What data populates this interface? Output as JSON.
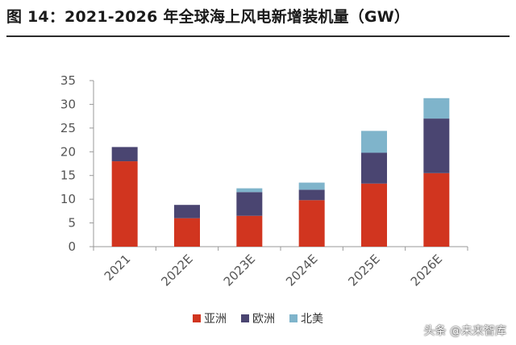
{
  "title": "图 14：2021-2026 年全球海上风电新增装机量（GW）",
  "watermark": "头条 @未来智库",
  "colors": {
    "asia": "#d1351f",
    "europe": "#4a4571",
    "north_america": "#7fb4cb"
  },
  "chart_data": {
    "type": "bar",
    "stacked": true,
    "categories": [
      "2021",
      "2022E",
      "2023E",
      "2024E",
      "2025E",
      "2026E"
    ],
    "series": [
      {
        "name": "亚洲",
        "values": [
          18.0,
          6.0,
          6.5,
          9.8,
          13.3,
          15.5
        ]
      },
      {
        "name": "欧洲",
        "values": [
          3.0,
          2.8,
          5.0,
          2.2,
          6.5,
          11.5
        ]
      },
      {
        "name": "北美",
        "values": [
          0.0,
          0.0,
          0.8,
          1.5,
          4.6,
          4.3
        ]
      }
    ],
    "ylim": [
      0,
      35
    ],
    "yticks": [
      0,
      5,
      10,
      15,
      20,
      25,
      30,
      35
    ],
    "legend_position": "bottom",
    "grid": false
  }
}
